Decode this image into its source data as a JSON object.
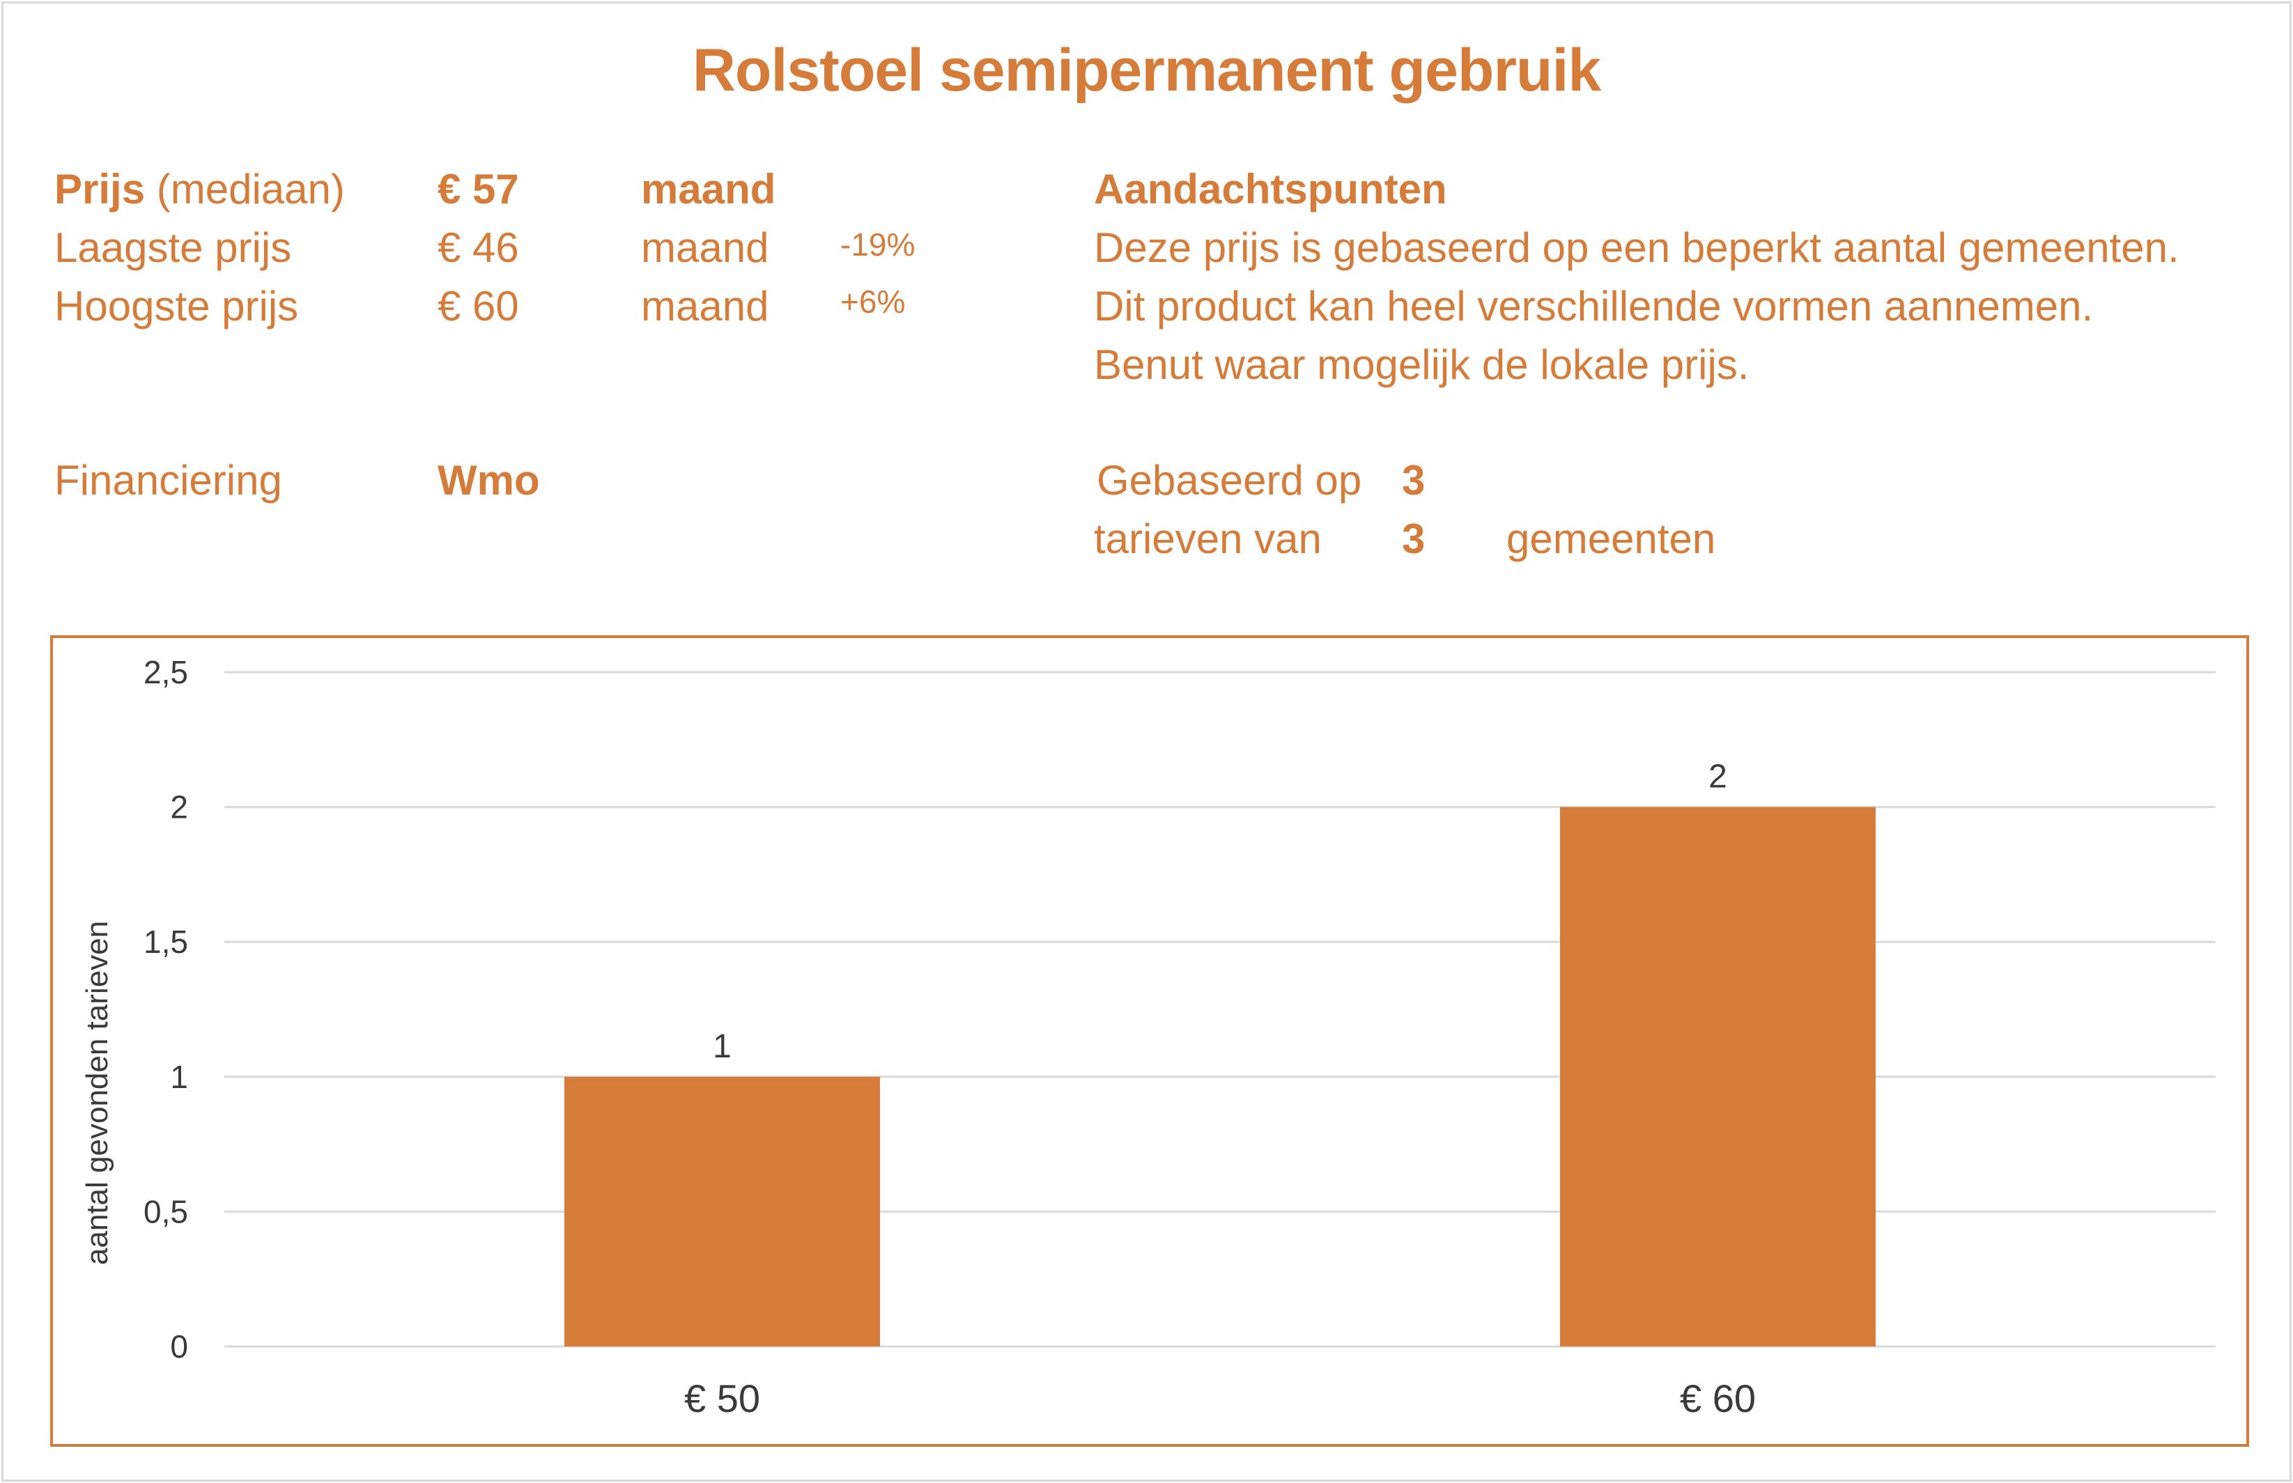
{
  "title": "Rolstoel semipermanent gebruik",
  "prices": {
    "median": {
      "label_bold": "Prijs",
      "label_rest": "(mediaan)",
      "value": "€ 57",
      "unit": "maand"
    },
    "lowest": {
      "label": "Laagste prijs",
      "value": "€ 46",
      "unit": "maand",
      "delta": "-19%"
    },
    "highest": {
      "label": "Hoogste prijs",
      "value": "€ 60",
      "unit": "maand",
      "delta": "+6%"
    }
  },
  "notes": {
    "heading": "Aandachtspunten",
    "lines": [
      "Deze prijs is gebaseerd op een beperkt aantal gemeenten.",
      "Dit product kan heel verschillende vormen aannemen.",
      "Benut waar mogelijk de lokale prijs."
    ]
  },
  "financing": {
    "label": "Financiering",
    "value": "Wmo"
  },
  "basis": {
    "line1": "Gebaseerd op",
    "count1": "3",
    "line2": "tarieven van",
    "count2": "3",
    "suffix": "gemeenten"
  },
  "colors": {
    "accent": "#d57c3a",
    "grid": "#d9d9d9",
    "text_dark": "#3a3a3a"
  },
  "chart_data": {
    "type": "bar",
    "categories": [
      "€ 50",
      "€ 60"
    ],
    "values": [
      1,
      2
    ],
    "data_labels": [
      "1",
      "2"
    ],
    "ylabel": "aantal gevonden tarieven",
    "ylim": [
      0,
      2.5
    ],
    "yticks": [
      0,
      0.5,
      1,
      1.5,
      2,
      2.5
    ],
    "ytick_labels": [
      "0",
      "0,5",
      "1",
      "1,5",
      "2",
      "2,5"
    ],
    "grid": true
  }
}
